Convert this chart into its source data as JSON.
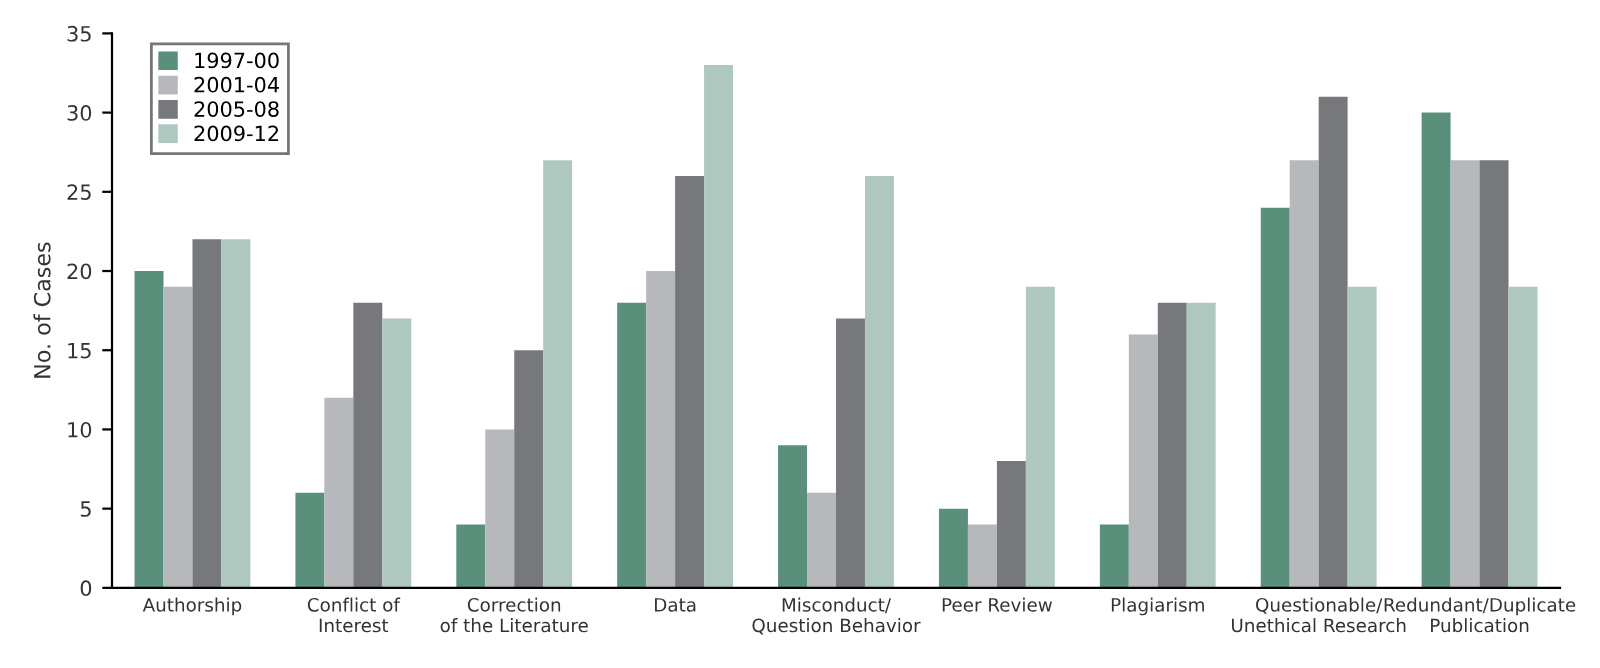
{
  "chart_data": {
    "type": "bar",
    "ylabel": "No. of Cases",
    "categories": [
      "Authorship",
      "Conflict of\nInterest",
      "Correction\nof the Literature",
      "Data",
      "Misconduct/\nQuestion Behavior",
      "Peer Review",
      "Plagiarism",
      "Questionable/\nUnethical Research",
      "Redundant/Duplicate\nPublication"
    ],
    "series": [
      {
        "name": "1997-00",
        "color": "#5a8f7b",
        "values": [
          20,
          6,
          4,
          18,
          9,
          5,
          4,
          24,
          30
        ]
      },
      {
        "name": "2001-04",
        "color": "#b7b8bb",
        "values": [
          19,
          12,
          10,
          20,
          6,
          4,
          16,
          27,
          27
        ]
      },
      {
        "name": "2005-08",
        "color": "#77787c",
        "values": [
          22,
          18,
          15,
          26,
          17,
          8,
          18,
          31,
          27
        ]
      },
      {
        "name": "2009-12",
        "color": "#afc8bf",
        "values": [
          22,
          17,
          27,
          33,
          26,
          19,
          18,
          19,
          19
        ]
      }
    ],
    "ylim": [
      0,
      35
    ],
    "yticks": [
      0,
      5,
      10,
      15,
      20,
      25,
      30,
      35
    ],
    "grid": false,
    "legend": "top left"
  }
}
